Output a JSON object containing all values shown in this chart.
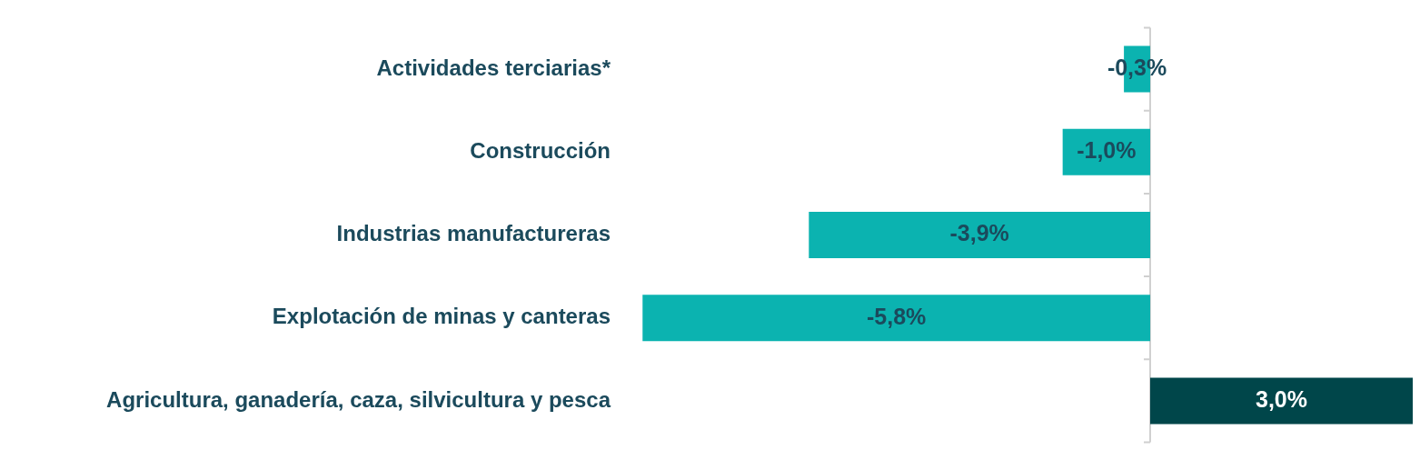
{
  "chart_data": {
    "type": "bar",
    "orientation": "horizontal",
    "categories": [
      "Actividades terciarias*",
      "Construcción",
      "Industrias manufactureras",
      "Explotación de minas y canteras",
      "Agricultura, ganadería, caza, silvicultura y pesca"
    ],
    "values": [
      -0.3,
      -1.0,
      -3.9,
      -5.8,
      3.0
    ],
    "colors": [
      "#0bb3b0",
      "#0bb3b0",
      "#0bb3b0",
      "#0bb3b0",
      "#00464a"
    ],
    "value_labels": [
      "-0,3%",
      "-1,0%",
      "-3,9%",
      "-5,8%",
      "3,0%"
    ],
    "tick_labels": "y",
    "grid": false,
    "legend": false
  }
}
